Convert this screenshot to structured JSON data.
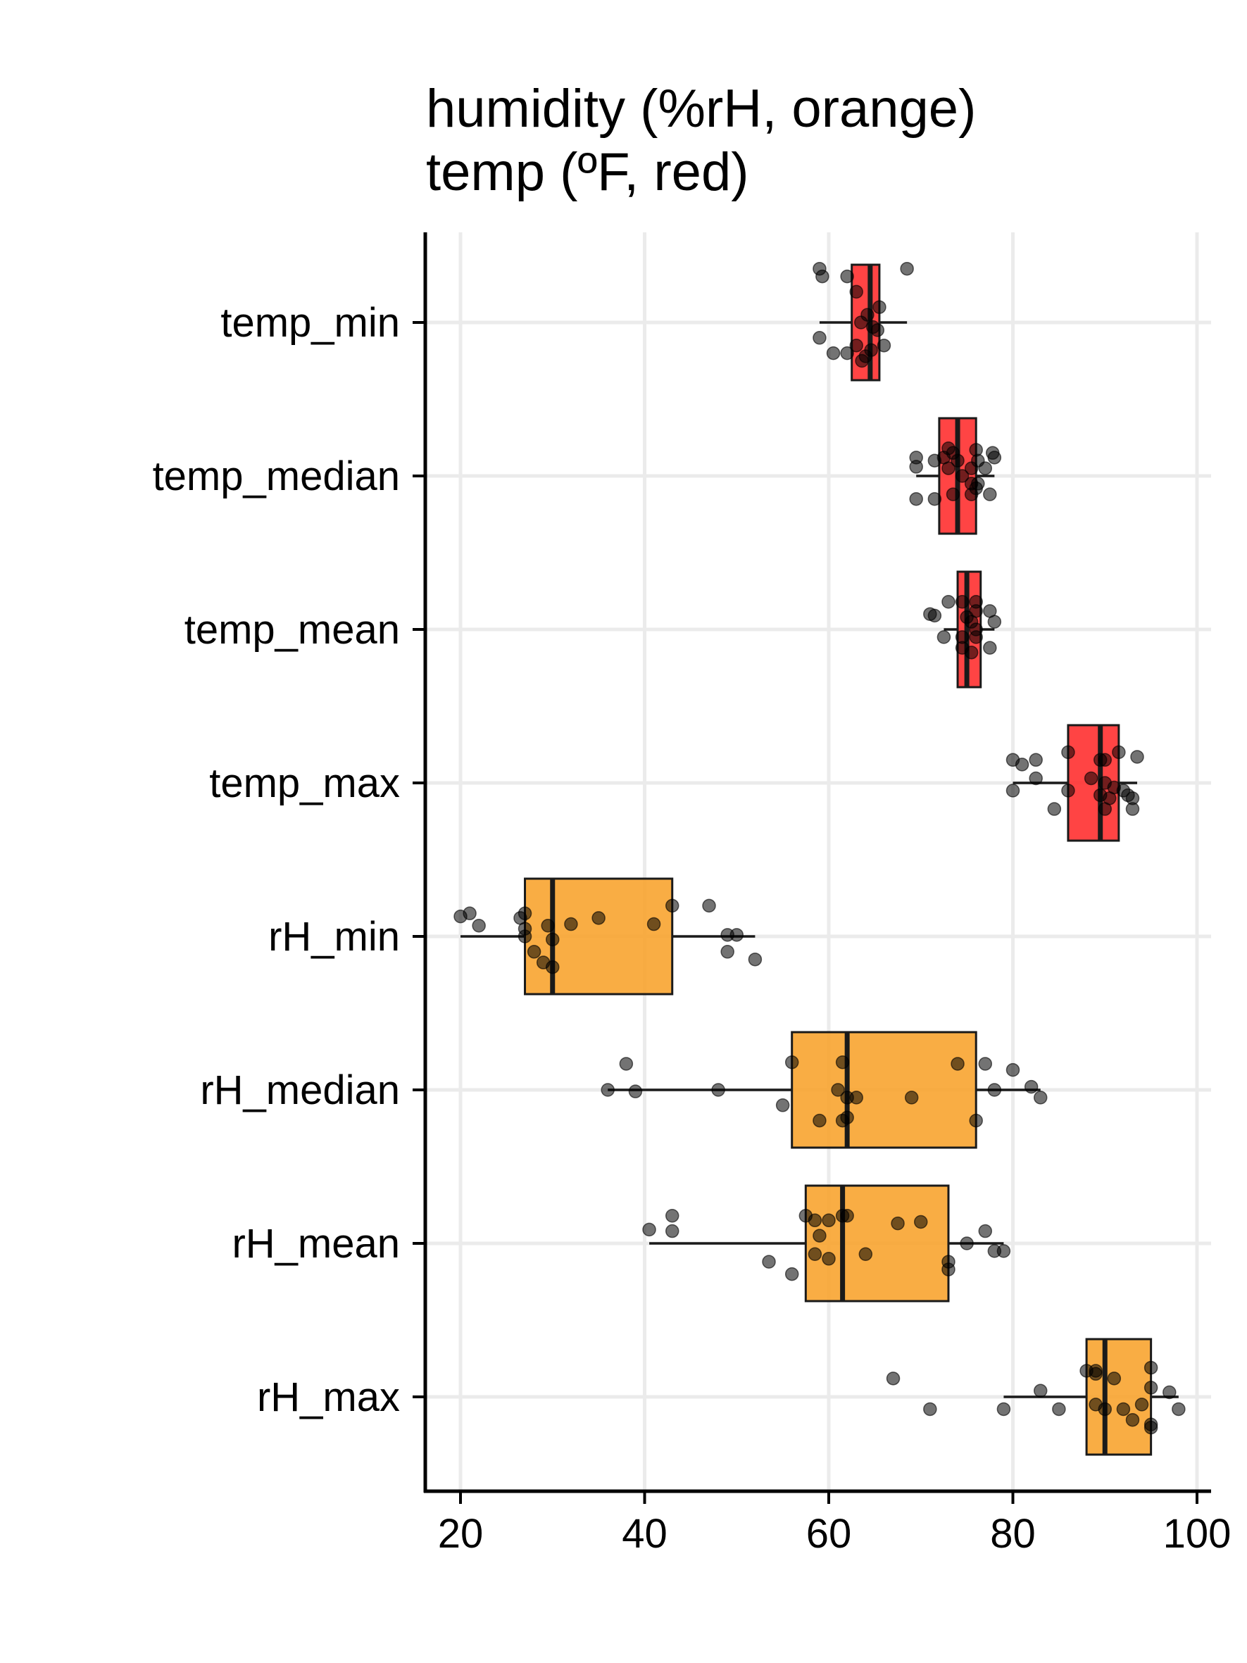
{
  "chart_data": {
    "type": "boxplot",
    "orientation": "horizontal",
    "title": [
      "humidity (%rH, orange)",
      "temp (ºF, red)"
    ],
    "xlabel": "",
    "ylabel": "",
    "xlim": [
      18,
      102
    ],
    "x_ticks": [
      20,
      40,
      60,
      80,
      100
    ],
    "grid": true,
    "colors": {
      "temp": "#ff2a2a",
      "humidity": "#f8a22a",
      "points": "#000000",
      "grid": "#ebebeb"
    },
    "categories": [
      "temp_min",
      "temp_median",
      "temp_mean",
      "temp_max",
      "rH_min",
      "rH_median",
      "rH_mean",
      "rH_max"
    ],
    "boxes": [
      {
        "name": "temp_min",
        "group": "temp",
        "whisker_low": 59,
        "q1": 62.5,
        "median": 64.5,
        "q3": 65.5,
        "whisker_high": 68.5,
        "points": [
          [
            59,
            0.35
          ],
          [
            59.3,
            0.3
          ],
          [
            62,
            0.3
          ],
          [
            63,
            0.2
          ],
          [
            65.5,
            0.1
          ],
          [
            68.5,
            0.35
          ],
          [
            64.2,
            0.05
          ],
          [
            63.5,
            0
          ],
          [
            64.8,
            -0.03
          ],
          [
            65.3,
            -0.05
          ],
          [
            66,
            -0.15
          ],
          [
            59,
            -0.1
          ],
          [
            60.5,
            -0.2
          ],
          [
            62,
            -0.2
          ],
          [
            63,
            -0.15
          ],
          [
            64,
            -0.22
          ],
          [
            64.6,
            -0.18
          ],
          [
            63.6,
            -0.25
          ]
        ]
      },
      {
        "name": "temp_median",
        "group": "temp",
        "whisker_low": 69.5,
        "q1": 72,
        "median": 74,
        "q3": 76,
        "whisker_high": 78,
        "points": [
          [
            69.5,
            0.12
          ],
          [
            69.5,
            0.06
          ],
          [
            71.5,
            0.1
          ],
          [
            72.5,
            0.12
          ],
          [
            73,
            0.18
          ],
          [
            73.5,
            0.15
          ],
          [
            74,
            0.1
          ],
          [
            75.5,
            0.05
          ],
          [
            76,
            0.17
          ],
          [
            76.2,
            0.1
          ],
          [
            77.8,
            0.15
          ],
          [
            78,
            0.12
          ],
          [
            77,
            0.05
          ],
          [
            73,
            0.05
          ],
          [
            74.5,
            0
          ],
          [
            75.5,
            -0.05
          ],
          [
            76,
            -0.08
          ],
          [
            69.5,
            -0.15
          ],
          [
            71.5,
            -0.15
          ],
          [
            73.5,
            -0.12
          ],
          [
            75.5,
            -0.12
          ],
          [
            76.2,
            -0.05
          ],
          [
            77.5,
            -0.12
          ]
        ]
      },
      {
        "name": "temp_mean",
        "group": "temp",
        "whisker_low": 72.5,
        "q1": 74,
        "median": 75,
        "q3": 76.5,
        "whisker_high": 78,
        "points": [
          [
            71,
            0.1
          ],
          [
            71.5,
            0.09
          ],
          [
            73,
            0.18
          ],
          [
            74.5,
            0.18
          ],
          [
            76,
            0.18
          ],
          [
            76,
            0.12
          ],
          [
            77.5,
            0.12
          ],
          [
            78,
            0.05
          ],
          [
            75.5,
            0.05
          ],
          [
            76,
            0
          ],
          [
            75,
            0.08
          ],
          [
            72.5,
            -0.05
          ],
          [
            74.5,
            -0.05
          ],
          [
            76,
            -0.05
          ],
          [
            74.5,
            -0.12
          ],
          [
            75.5,
            -0.15
          ],
          [
            77.5,
            -0.12
          ]
        ]
      },
      {
        "name": "temp_max",
        "group": "temp",
        "whisker_low": 80,
        "q1": 86,
        "median": 89.5,
        "q3": 91.5,
        "whisker_high": 93.5,
        "points": [
          [
            80,
            0.15
          ],
          [
            81,
            0.12
          ],
          [
            82.5,
            0.15
          ],
          [
            86,
            0.2
          ],
          [
            89.5,
            0.15
          ],
          [
            90,
            0.15
          ],
          [
            91.5,
            0.2
          ],
          [
            93.5,
            0.17
          ],
          [
            82.5,
            0.03
          ],
          [
            88.5,
            0.03
          ],
          [
            90,
            0
          ],
          [
            91,
            -0.03
          ],
          [
            92,
            -0.05
          ],
          [
            92.5,
            -0.08
          ],
          [
            93,
            -0.1
          ],
          [
            89.5,
            -0.08
          ],
          [
            90.5,
            -0.1
          ],
          [
            84.5,
            -0.17
          ],
          [
            90,
            -0.17
          ],
          [
            93,
            -0.17
          ],
          [
            80,
            -0.05
          ],
          [
            86,
            -0.05
          ]
        ]
      },
      {
        "name": "rH_min",
        "group": "humidity",
        "whisker_low": 20,
        "q1": 27,
        "median": 30,
        "q3": 43,
        "whisker_high": 52,
        "points": [
          [
            20,
            0.13
          ],
          [
            21,
            0.15
          ],
          [
            22,
            0.07
          ],
          [
            26.5,
            0.12
          ],
          [
            27,
            0.15
          ],
          [
            27,
            0.05
          ],
          [
            29.5,
            0.07
          ],
          [
            32,
            0.08
          ],
          [
            35,
            0.12
          ],
          [
            41,
            0.08
          ],
          [
            43,
            0.2
          ],
          [
            47,
            0.2
          ],
          [
            49,
            0.01
          ],
          [
            50,
            0.01
          ],
          [
            49,
            -0.1
          ],
          [
            52,
            -0.15
          ],
          [
            27,
            0
          ],
          [
            30,
            -0.02
          ],
          [
            28,
            -0.1
          ],
          [
            29,
            -0.17
          ],
          [
            30,
            -0.2
          ]
        ]
      },
      {
        "name": "rH_median",
        "group": "humidity",
        "whisker_low": 36,
        "q1": 56,
        "median": 62,
        "q3": 76,
        "whisker_high": 83,
        "points": [
          [
            38,
            0.17
          ],
          [
            36,
            0
          ],
          [
            39,
            -0.01
          ],
          [
            48,
            0
          ],
          [
            56,
            0.18
          ],
          [
            61.5,
            0.18
          ],
          [
            74,
            0.17
          ],
          [
            77,
            0.17
          ],
          [
            80,
            0.13
          ],
          [
            82,
            0.02
          ],
          [
            83,
            -0.05
          ],
          [
            78,
            0
          ],
          [
            61,
            0
          ],
          [
            63,
            -0.05
          ],
          [
            62,
            -0.05
          ],
          [
            69,
            -0.05
          ],
          [
            55,
            -0.1
          ],
          [
            59,
            -0.2
          ],
          [
            61.5,
            -0.2
          ],
          [
            62,
            -0.18
          ],
          [
            76,
            -0.2
          ]
        ]
      },
      {
        "name": "rH_mean",
        "group": "humidity",
        "whisker_low": 40.5,
        "q1": 57.5,
        "median": 61.5,
        "q3": 73,
        "whisker_high": 79,
        "points": [
          [
            40.5,
            0.09
          ],
          [
            43,
            0.18
          ],
          [
            43,
            0.08
          ],
          [
            57.5,
            0.18
          ],
          [
            58.5,
            0.15
          ],
          [
            60,
            0.15
          ],
          [
            61.5,
            0.18
          ],
          [
            62,
            0.18
          ],
          [
            67.5,
            0.13
          ],
          [
            70,
            0.14
          ],
          [
            59,
            0.05
          ],
          [
            75,
            0
          ],
          [
            77,
            0.08
          ],
          [
            78,
            -0.05
          ],
          [
            79,
            -0.05
          ],
          [
            58.5,
            -0.07
          ],
          [
            60,
            -0.1
          ],
          [
            64,
            -0.07
          ],
          [
            53.5,
            -0.12
          ],
          [
            56,
            -0.2
          ],
          [
            73,
            -0.12
          ],
          [
            73,
            -0.17
          ]
        ]
      },
      {
        "name": "rH_max",
        "group": "humidity",
        "whisker_low": 79,
        "q1": 88,
        "median": 90,
        "q3": 95,
        "whisker_high": 98,
        "points": [
          [
            67,
            0.12
          ],
          [
            71,
            -0.08
          ],
          [
            79,
            -0.08
          ],
          [
            83,
            0.04
          ],
          [
            85,
            -0.08
          ],
          [
            88,
            0.17
          ],
          [
            89,
            0.17
          ],
          [
            91,
            0.12
          ],
          [
            95,
            0.19
          ],
          [
            95,
            0.06
          ],
          [
            97,
            0.03
          ],
          [
            98,
            -0.08
          ],
          [
            89,
            -0.05
          ],
          [
            90,
            -0.08
          ],
          [
            92,
            -0.08
          ],
          [
            94,
            -0.05
          ],
          [
            93,
            -0.15
          ],
          [
            95,
            -0.18
          ],
          [
            95,
            -0.2
          ],
          [
            89,
            0.15
          ]
        ]
      }
    ]
  }
}
